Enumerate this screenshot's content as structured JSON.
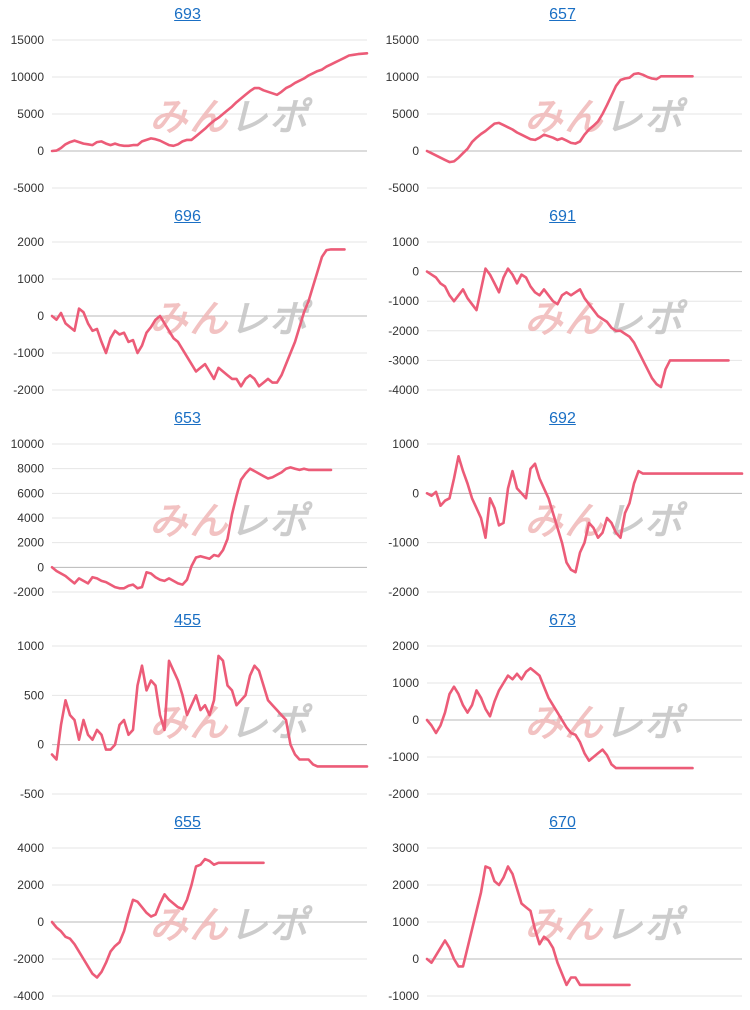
{
  "watermark": {
    "text": "みんレポ"
  },
  "colors": {
    "line": "#ec5c78",
    "grid": "#e6e6e6",
    "zero": "#b8b8b8",
    "tick": "#333333",
    "title": "#1a6fc4",
    "watermark_red": "#f0b8b8",
    "watermark_gray": "#c4c4c4"
  },
  "chart_data": [
    {
      "type": "line",
      "title": "693",
      "ylim": [
        -5000,
        15000
      ],
      "yticks": [
        15000,
        10000,
        5000,
        0,
        -5000
      ],
      "xlim": [
        0,
        70
      ],
      "x": [
        0,
        1,
        2,
        3,
        4,
        5,
        6,
        7,
        8,
        9,
        10,
        11,
        12,
        13,
        14,
        15,
        16,
        17,
        18,
        19,
        20,
        21,
        22,
        23,
        24,
        25,
        26,
        27,
        28,
        29,
        30,
        31,
        32,
        33,
        34,
        35,
        36,
        37,
        38,
        39,
        40,
        41,
        42,
        43,
        44,
        45,
        46,
        47,
        48,
        49,
        50,
        51,
        52,
        53,
        54,
        55,
        56,
        57,
        58,
        59,
        60,
        61,
        62,
        63,
        64,
        65,
        66,
        67,
        68,
        69,
        70
      ],
      "values": [
        0,
        50,
        400,
        900,
        1200,
        1400,
        1200,
        1000,
        900,
        800,
        1200,
        1300,
        1000,
        800,
        1000,
        800,
        700,
        700,
        800,
        800,
        1300,
        1500,
        1700,
        1600,
        1400,
        1100,
        800,
        700,
        900,
        1300,
        1500,
        1500,
        2000,
        2500,
        3000,
        3600,
        4100,
        4500,
        5000,
        5500,
        6000,
        6600,
        7100,
        7600,
        8100,
        8500,
        8500,
        8200,
        8000,
        7800,
        7600,
        8000,
        8500,
        8800,
        9200,
        9500,
        9800,
        10200,
        10500,
        10800,
        11000,
        11400,
        11700,
        12000,
        12300,
        12600,
        12900,
        13000,
        13100,
        13150,
        13200
      ]
    },
    {
      "type": "line",
      "title": "657",
      "ylim": [
        -5000,
        15000
      ],
      "yticks": [
        15000,
        10000,
        5000,
        0,
        -5000
      ],
      "xlim": [
        0,
        70
      ],
      "x": [
        0,
        1,
        2,
        3,
        4,
        5,
        6,
        7,
        8,
        9,
        10,
        11,
        12,
        13,
        14,
        15,
        16,
        17,
        18,
        19,
        20,
        21,
        22,
        23,
        24,
        25,
        26,
        27,
        28,
        29,
        30,
        31,
        32,
        33,
        34,
        35,
        36,
        37,
        38,
        39,
        40,
        41,
        42,
        43,
        44,
        45,
        46,
        47,
        48,
        49,
        50,
        51,
        52,
        53,
        54,
        55,
        56,
        57,
        58,
        59
      ],
      "values": [
        0,
        -300,
        -600,
        -900,
        -1200,
        -1500,
        -1400,
        -900,
        -300,
        300,
        1200,
        1800,
        2300,
        2700,
        3200,
        3700,
        3800,
        3500,
        3200,
        2900,
        2500,
        2200,
        1900,
        1600,
        1500,
        1800,
        2200,
        2000,
        1800,
        1500,
        1700,
        1400,
        1100,
        1000,
        1300,
        2200,
        2900,
        3400,
        4000,
        5000,
        6200,
        7500,
        8800,
        9600,
        9800,
        9900,
        10400,
        10500,
        10300,
        10000,
        9800,
        9700,
        10100,
        10100,
        10100,
        10100,
        10100,
        10100,
        10100,
        10100
      ]
    },
    {
      "type": "line",
      "title": "696",
      "ylim": [
        -2000,
        2000
      ],
      "yticks": [
        2000,
        1000,
        0,
        -1000,
        -2000
      ],
      "xlim": [
        0,
        70
      ],
      "x": [
        0,
        1,
        2,
        3,
        4,
        5,
        6,
        7,
        8,
        9,
        10,
        11,
        12,
        13,
        14,
        15,
        16,
        17,
        18,
        19,
        20,
        21,
        22,
        23,
        24,
        25,
        26,
        27,
        28,
        29,
        30,
        31,
        32,
        33,
        34,
        35,
        36,
        37,
        38,
        39,
        40,
        41,
        42,
        43,
        44,
        45,
        46,
        47,
        48,
        49,
        50,
        51,
        52,
        53,
        54,
        55,
        56,
        57,
        58,
        59,
        60,
        61,
        62,
        63,
        64,
        65
      ],
      "values": [
        0,
        -100,
        80,
        -200,
        -300,
        -400,
        200,
        100,
        -200,
        -400,
        -350,
        -700,
        -1000,
        -600,
        -400,
        -500,
        -450,
        -700,
        -650,
        -1000,
        -800,
        -450,
        -300,
        -100,
        0,
        -200,
        -400,
        -600,
        -700,
        -900,
        -1100,
        -1300,
        -1500,
        -1400,
        -1300,
        -1500,
        -1700,
        -1400,
        -1500,
        -1600,
        -1700,
        -1700,
        -1900,
        -1700,
        -1600,
        -1700,
        -1900,
        -1800,
        -1700,
        -1800,
        -1800,
        -1600,
        -1300,
        -1000,
        -700,
        -300,
        100,
        400,
        800,
        1200,
        1600,
        1780,
        1800,
        1800,
        1800,
        1800
      ]
    },
    {
      "type": "line",
      "title": "691",
      "ylim": [
        -4000,
        1000
      ],
      "yticks": [
        1000,
        0,
        -1000,
        -2000,
        -3000,
        -4000
      ],
      "xlim": [
        0,
        70
      ],
      "x": [
        0,
        1,
        2,
        3,
        4,
        5,
        6,
        7,
        8,
        9,
        10,
        11,
        12,
        13,
        14,
        15,
        16,
        17,
        18,
        19,
        20,
        21,
        22,
        23,
        24,
        25,
        26,
        27,
        28,
        29,
        30,
        31,
        32,
        33,
        34,
        35,
        36,
        37,
        38,
        39,
        40,
        41,
        42,
        43,
        44,
        45,
        46,
        47,
        48,
        49,
        50,
        51,
        52,
        53,
        54,
        55,
        56,
        57,
        58,
        59,
        60,
        61,
        62,
        63,
        64,
        65,
        66,
        67
      ],
      "values": [
        0,
        -100,
        -200,
        -400,
        -500,
        -800,
        -1000,
        -800,
        -600,
        -900,
        -1100,
        -1300,
        -600,
        100,
        -100,
        -400,
        -700,
        -200,
        100,
        -100,
        -400,
        -100,
        -200,
        -500,
        -700,
        -800,
        -600,
        -800,
        -1000,
        -1100,
        -800,
        -700,
        -800,
        -700,
        -600,
        -900,
        -1100,
        -1300,
        -1500,
        -1600,
        -1700,
        -1900,
        -2000,
        -2000,
        -2100,
        -2200,
        -2400,
        -2700,
        -3000,
        -3300,
        -3600,
        -3800,
        -3900,
        -3300,
        -3000,
        -3000,
        -3000,
        -3000,
        -3000,
        -3000,
        -3000,
        -3000,
        -3000,
        -3000,
        -3000,
        -3000,
        -3000,
        -3000
      ]
    },
    {
      "type": "line",
      "title": "653",
      "ylim": [
        -2000,
        10000
      ],
      "yticks": [
        10000,
        8000,
        6000,
        4000,
        2000,
        0,
        -2000
      ],
      "xlim": [
        0,
        70
      ],
      "x": [
        0,
        1,
        2,
        3,
        4,
        5,
        6,
        7,
        8,
        9,
        10,
        11,
        12,
        13,
        14,
        15,
        16,
        17,
        18,
        19,
        20,
        21,
        22,
        23,
        24,
        25,
        26,
        27,
        28,
        29,
        30,
        31,
        32,
        33,
        34,
        35,
        36,
        37,
        38,
        39,
        40,
        41,
        42,
        43,
        44,
        45,
        46,
        47,
        48,
        49,
        50,
        51,
        52,
        53,
        54,
        55,
        56,
        57,
        58,
        59,
        60,
        61,
        62
      ],
      "values": [
        0,
        -300,
        -500,
        -700,
        -1000,
        -1300,
        -900,
        -1100,
        -1300,
        -800,
        -900,
        -1100,
        -1200,
        -1400,
        -1600,
        -1700,
        -1700,
        -1500,
        -1400,
        -1700,
        -1600,
        -400,
        -500,
        -800,
        -1000,
        -1100,
        -900,
        -1100,
        -1300,
        -1400,
        -1000,
        100,
        800,
        900,
        800,
        700,
        1000,
        900,
        1400,
        2300,
        4300,
        5800,
        7100,
        7600,
        8000,
        7800,
        7600,
        7400,
        7200,
        7300,
        7500,
        7700,
        8000,
        8100,
        8000,
        7900,
        8000,
        7900,
        7900,
        7900,
        7900,
        7900,
        7900
      ]
    },
    {
      "type": "line",
      "title": "692",
      "ylim": [
        -2000,
        1000
      ],
      "yticks": [
        1000,
        0,
        -1000,
        -2000
      ],
      "xlim": [
        0,
        70
      ],
      "x": [
        0,
        1,
        2,
        3,
        4,
        5,
        6,
        7,
        8,
        9,
        10,
        11,
        12,
        13,
        14,
        15,
        16,
        17,
        18,
        19,
        20,
        21,
        22,
        23,
        24,
        25,
        26,
        27,
        28,
        29,
        30,
        31,
        32,
        33,
        34,
        35,
        36,
        37,
        38,
        39,
        40,
        41,
        42,
        43,
        44,
        45,
        46,
        47,
        48,
        49,
        50,
        51,
        52,
        53,
        54,
        55,
        56,
        57,
        58,
        59,
        60,
        61,
        62,
        63,
        64,
        65,
        66,
        67,
        68,
        69,
        70
      ],
      "values": [
        0,
        -50,
        30,
        -250,
        -150,
        -100,
        300,
        750,
        450,
        200,
        -100,
        -300,
        -500,
        -900,
        -100,
        -300,
        -650,
        -600,
        100,
        450,
        100,
        0,
        -100,
        500,
        600,
        300,
        100,
        -100,
        -400,
        -700,
        -1000,
        -1400,
        -1550,
        -1600,
        -1200,
        -1000,
        -600,
        -700,
        -900,
        -800,
        -500,
        -600,
        -800,
        -900,
        -400,
        -200,
        200,
        450,
        400,
        400,
        400,
        400,
        400,
        400,
        400,
        400,
        400,
        400,
        400,
        400,
        400,
        400,
        400,
        400,
        400,
        400,
        400,
        400,
        400,
        400,
        400
      ]
    },
    {
      "type": "line",
      "title": "455",
      "ylim": [
        -500,
        1000
      ],
      "yticks": [
        1000,
        500,
        0,
        -500
      ],
      "xlim": [
        0,
        70
      ],
      "x": [
        0,
        1,
        2,
        3,
        4,
        5,
        6,
        7,
        8,
        9,
        10,
        11,
        12,
        13,
        14,
        15,
        16,
        17,
        18,
        19,
        20,
        21,
        22,
        23,
        24,
        25,
        26,
        27,
        28,
        29,
        30,
        31,
        32,
        33,
        34,
        35,
        36,
        37,
        38,
        39,
        40,
        41,
        42,
        43,
        44,
        45,
        46,
        47,
        48,
        49,
        50,
        51,
        52,
        53,
        54,
        55,
        56,
        57,
        58,
        59,
        60,
        61,
        62,
        63,
        64,
        65,
        66,
        67,
        68,
        69,
        70
      ],
      "values": [
        -100,
        -150,
        200,
        450,
        300,
        250,
        50,
        250,
        100,
        50,
        150,
        100,
        -50,
        -50,
        0,
        200,
        250,
        100,
        150,
        600,
        800,
        550,
        650,
        600,
        300,
        150,
        850,
        750,
        650,
        500,
        300,
        400,
        500,
        350,
        400,
        300,
        450,
        900,
        850,
        600,
        550,
        400,
        450,
        500,
        700,
        800,
        750,
        600,
        450,
        400,
        350,
        300,
        250,
        0,
        -100,
        -150,
        -150,
        -150,
        -200,
        -220,
        -220,
        -220,
        -220,
        -220,
        -220,
        -220,
        -220,
        -220,
        -220,
        -220,
        -220
      ]
    },
    {
      "type": "line",
      "title": "673",
      "ylim": [
        -2000,
        2000
      ],
      "yticks": [
        2000,
        1000,
        0,
        -1000,
        -2000
      ],
      "xlim": [
        0,
        70
      ],
      "x": [
        0,
        1,
        2,
        3,
        4,
        5,
        6,
        7,
        8,
        9,
        10,
        11,
        12,
        13,
        14,
        15,
        16,
        17,
        18,
        19,
        20,
        21,
        22,
        23,
        24,
        25,
        26,
        27,
        28,
        29,
        30,
        31,
        32,
        33,
        34,
        35,
        36,
        37,
        38,
        39,
        40,
        41,
        42,
        43,
        44,
        45,
        46,
        47,
        48,
        49,
        50,
        51,
        52,
        53,
        54,
        55,
        56,
        57,
        58,
        59
      ],
      "values": [
        0,
        -150,
        -350,
        -150,
        200,
        700,
        900,
        700,
        400,
        200,
        400,
        800,
        600,
        300,
        100,
        500,
        800,
        1000,
        1200,
        1100,
        1250,
        1100,
        1300,
        1400,
        1300,
        1200,
        900,
        600,
        400,
        200,
        0,
        -200,
        -350,
        -400,
        -600,
        -900,
        -1100,
        -1000,
        -900,
        -800,
        -950,
        -1200,
        -1300,
        -1300,
        -1300,
        -1300,
        -1300,
        -1300,
        -1300,
        -1300,
        -1300,
        -1300,
        -1300,
        -1300,
        -1300,
        -1300,
        -1300,
        -1300,
        -1300,
        -1300
      ]
    },
    {
      "type": "line",
      "title": "655",
      "ylim": [
        -4000,
        4000
      ],
      "yticks": [
        4000,
        2000,
        0,
        -2000,
        -4000
      ],
      "xlim": [
        0,
        70
      ],
      "x": [
        0,
        1,
        2,
        3,
        4,
        5,
        6,
        7,
        8,
        9,
        10,
        11,
        12,
        13,
        14,
        15,
        16,
        17,
        18,
        19,
        20,
        21,
        22,
        23,
        24,
        25,
        26,
        27,
        28,
        29,
        30,
        31,
        32,
        33,
        34,
        35,
        36,
        37,
        38,
        39,
        40,
        41,
        42,
        43,
        44,
        45,
        46,
        47
      ],
      "values": [
        0,
        -300,
        -500,
        -800,
        -900,
        -1200,
        -1600,
        -2000,
        -2400,
        -2800,
        -3000,
        -2700,
        -2200,
        -1600,
        -1300,
        -1100,
        -500,
        400,
        1200,
        1100,
        800,
        500,
        300,
        400,
        1000,
        1500,
        1200,
        1000,
        800,
        700,
        1200,
        2000,
        3000,
        3100,
        3400,
        3300,
        3100,
        3200,
        3200,
        3200,
        3200,
        3200,
        3200,
        3200,
        3200,
        3200,
        3200,
        3200
      ]
    },
    {
      "type": "line",
      "title": "670",
      "ylim": [
        -1000,
        3000
      ],
      "yticks": [
        3000,
        2000,
        1000,
        0,
        -1000
      ],
      "xlim": [
        0,
        70
      ],
      "x": [
        0,
        1,
        2,
        3,
        4,
        5,
        6,
        7,
        8,
        9,
        10,
        11,
        12,
        13,
        14,
        15,
        16,
        17,
        18,
        19,
        20,
        21,
        22,
        23,
        24,
        25,
        26,
        27,
        28,
        29,
        30,
        31,
        32,
        33,
        34,
        35,
        36,
        37,
        38,
        39,
        40,
        41,
        42,
        43,
        44,
        45
      ],
      "values": [
        0,
        -100,
        100,
        300,
        500,
        300,
        0,
        -200,
        -200,
        300,
        800,
        1300,
        1800,
        2500,
        2450,
        2100,
        2000,
        2200,
        2500,
        2300,
        1900,
        1500,
        1400,
        1300,
        800,
        400,
        600,
        500,
        300,
        -100,
        -400,
        -700,
        -500,
        -500,
        -700,
        -700,
        -700,
        -700,
        -700,
        -700,
        -700,
        -700,
        -700,
        -700,
        -700,
        -700
      ]
    }
  ]
}
